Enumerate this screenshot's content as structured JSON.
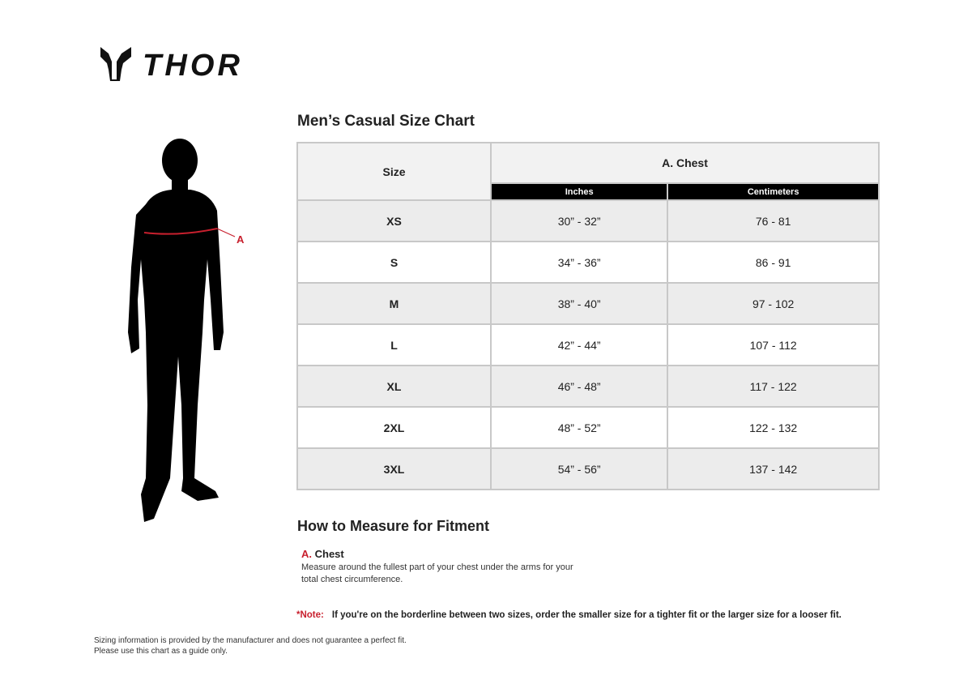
{
  "brand": {
    "name": "THOR"
  },
  "title": "Men’s Casual Size Chart",
  "figure": {
    "marker_label": "A",
    "accent": "#c8202e"
  },
  "table": {
    "size_header": "Size",
    "group_header": "A. Chest",
    "sub_headers": [
      "Inches",
      "Centimeters"
    ],
    "rows": [
      {
        "size": "XS",
        "inches": "30” - 32”",
        "cm": "76 - 81"
      },
      {
        "size": "S",
        "inches": "34” - 36”",
        "cm": "86 - 91"
      },
      {
        "size": "M",
        "inches": "38” - 40”",
        "cm": "97 - 102"
      },
      {
        "size": "L",
        "inches": "42” - 44”",
        "cm": "107 - 112"
      },
      {
        "size": "XL",
        "inches": "46” - 48”",
        "cm": "117 - 122"
      },
      {
        "size": "2XL",
        "inches": "48” - 52”",
        "cm": "122 - 132"
      },
      {
        "size": "3XL",
        "inches": "54” - 56”",
        "cm": "137 - 142"
      }
    ]
  },
  "howto": {
    "title": "How to Measure for Fitment",
    "letter": "A.",
    "name": "Chest",
    "line1": "Measure around the fullest part of your chest under the arms for your",
    "line2": "total chest circumference."
  },
  "note": {
    "label": "*Note:",
    "text": "If you're on the borderline between two sizes, order the smaller size for a tighter fit or the larger size for a looser fit."
  },
  "disclaimer": {
    "line1": "Sizing information is provided by the manufacturer and does not guarantee a perfect fit.",
    "line2": "Please use this chart as a guide only."
  }
}
